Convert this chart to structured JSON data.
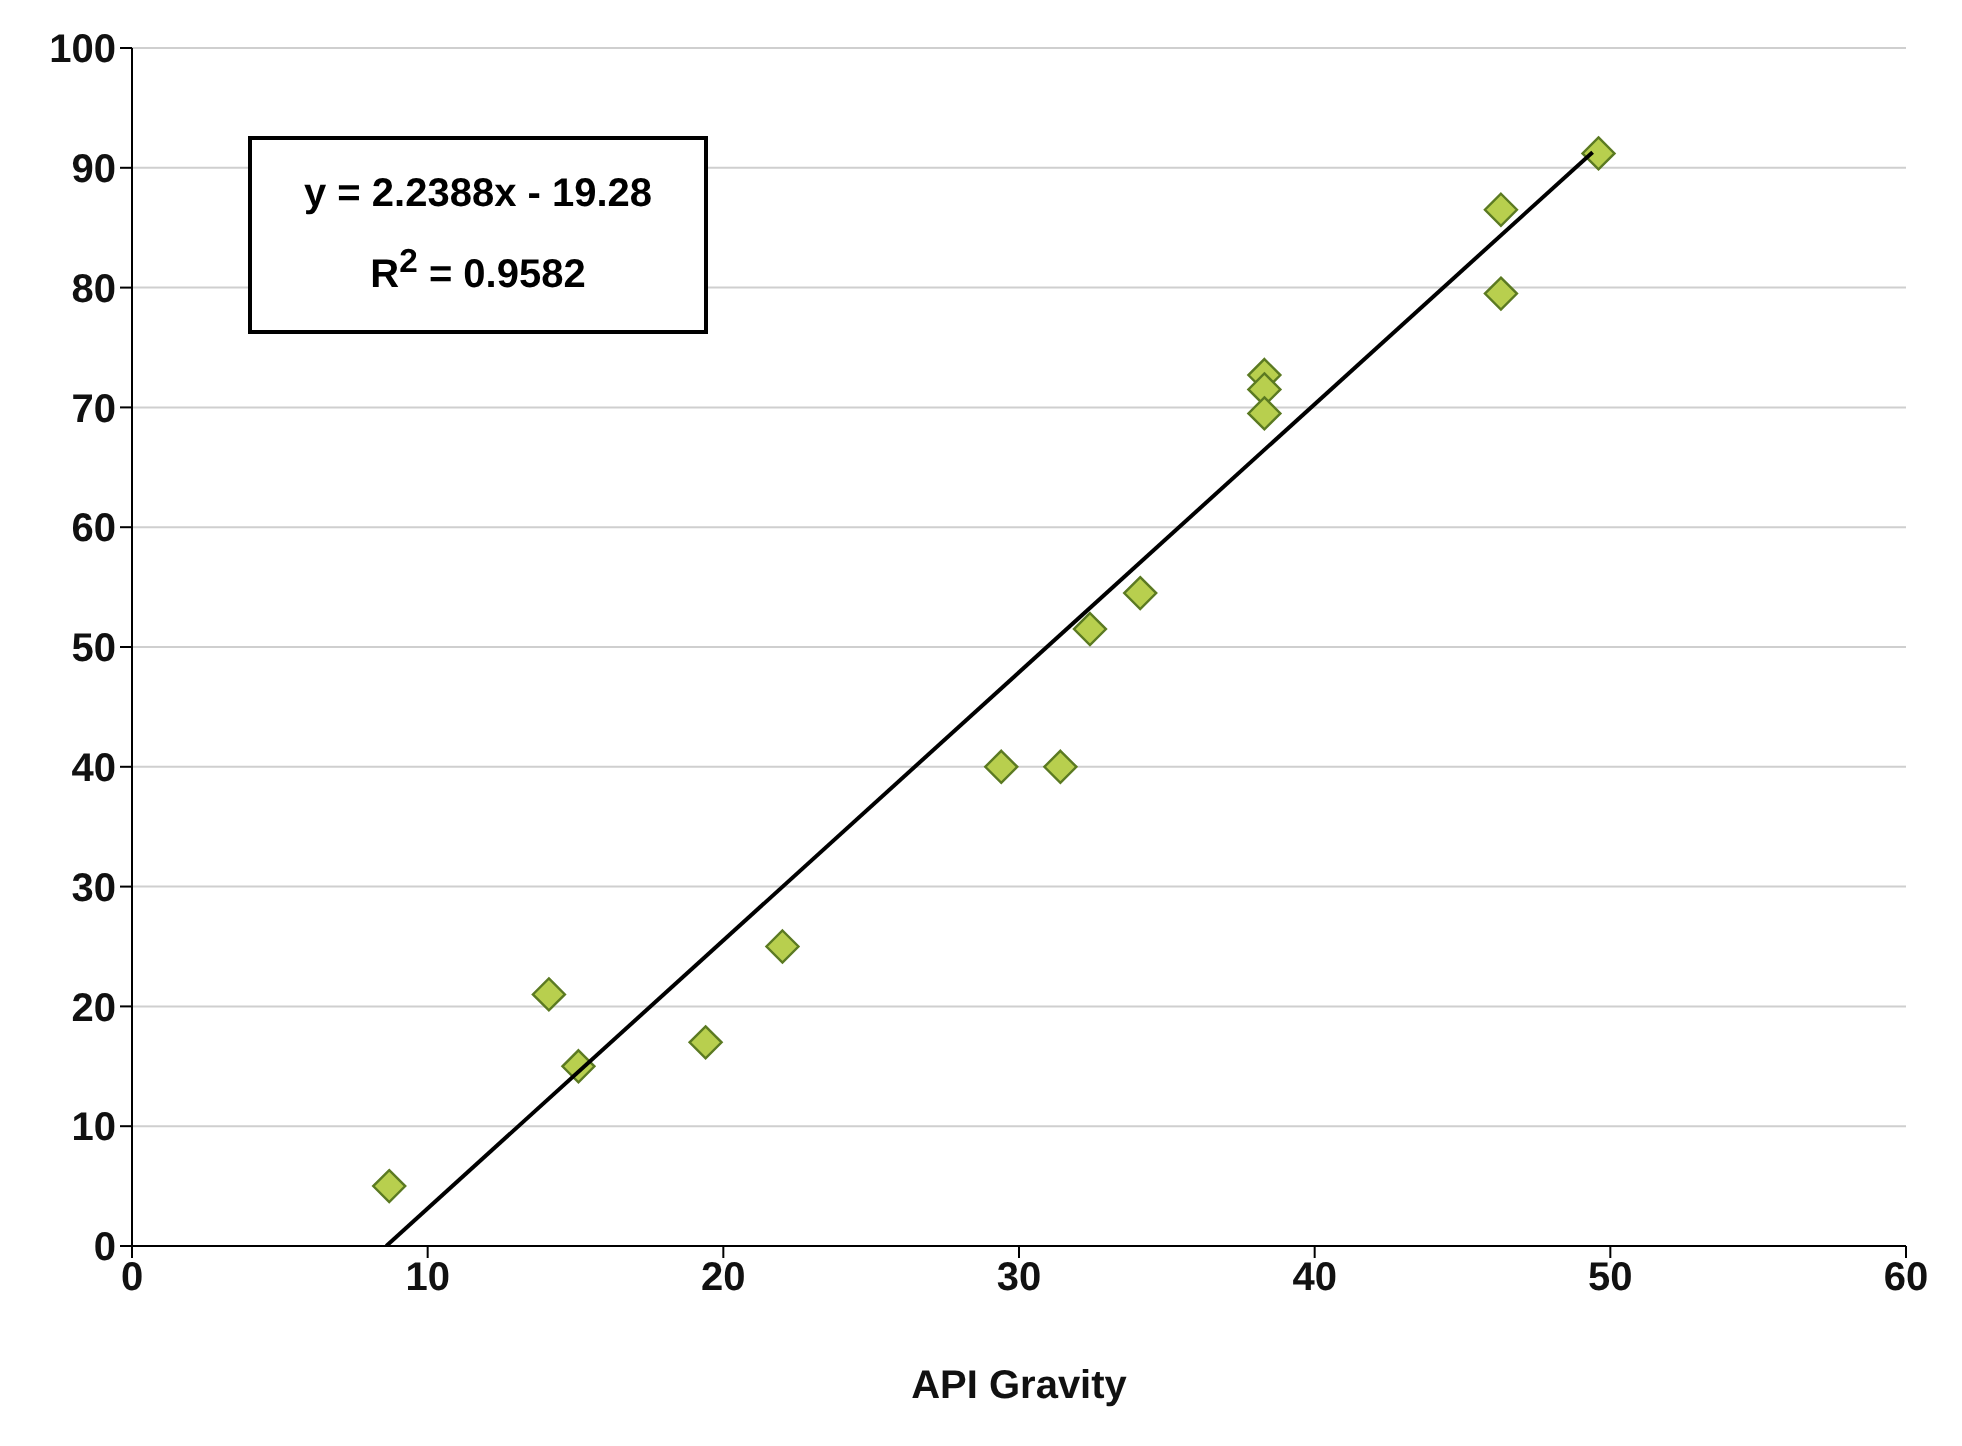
{
  "chart_data": {
    "type": "scatter",
    "xlabel": "API Gravity",
    "xlim": [
      0,
      60
    ],
    "xticks": [
      0,
      10,
      20,
      30,
      40,
      50,
      60
    ],
    "ylim": [
      0,
      100
    ],
    "yticks": [
      0,
      10,
      20,
      30,
      40,
      50,
      60,
      70,
      80,
      90,
      100
    ],
    "grid": "y",
    "legend": false,
    "annotations": [
      "y = 2.2388x - 19.28",
      "R$^{2}$ = 0.9582"
    ],
    "series": [
      {
        "type": "scatter",
        "marker": "diamond",
        "color": "#b8cf4e",
        "x": [
          8.7,
          14.1,
          15.1,
          19.4,
          22.0,
          29.4,
          31.4,
          32.4,
          34.1,
          38.3,
          38.3,
          38.3,
          46.3,
          46.3,
          49.6
        ],
        "values": [
          5,
          21,
          15,
          17,
          25,
          40,
          40,
          51.5,
          54.5,
          72.7,
          71.5,
          69.5,
          79.5,
          86.5,
          91.2
        ]
      },
      {
        "type": "line",
        "color": "#000000",
        "x": [
          8.6,
          49.4
        ],
        "values": [
          0,
          91.3
        ]
      }
    ]
  }
}
